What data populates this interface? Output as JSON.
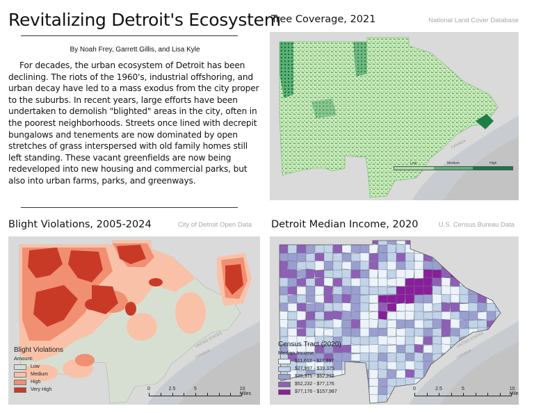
{
  "article": {
    "title": "Revitalizing Detroit's Ecosystem",
    "byline": "By Noah Frey, Garrett Gillis, and Lisa Kyle",
    "body": "For decades, the urban ecosystem of Detroit has been declining. The riots of the 1960's, industrial offshoring, and urban decay have led to a mass exodus from the city proper to the suburbs. In recent years, large efforts have been undertaken to demolish \"blighted\" areas in the city, often in the poorest neighborhoods. Streets once lined with decrepit bungalows and tenements are now dominated by open stretches of grass interspersed with old family homes still left standing. These vacant greenfields are now being redeveloped into new housing and commercial parks, but also into urban farms, parks, and greenways."
  },
  "tree_map": {
    "title": "Tree Coverage, 2021",
    "source": "National Land Cover Database",
    "water_label": "CANADA",
    "legend": [
      {
        "label": "Low",
        "color": "#a7d7a3"
      },
      {
        "label": "Medium",
        "color": "#59b27a"
      },
      {
        "label": "High",
        "color": "#0f7a4a"
      }
    ]
  },
  "blight_map": {
    "title": "Blight Violations, 2005-2024",
    "source": "City of Detroit Open Data",
    "legend_title": "Blight Violations",
    "legend_sub": "Amount:",
    "legend": [
      {
        "label": "Low",
        "color": "#d7dfd3"
      },
      {
        "label": "Medium",
        "color": "#f9c2a8"
      },
      {
        "label": "High",
        "color": "#f18f72"
      },
      {
        "label": "Very High",
        "color": "#c93a26"
      }
    ],
    "scale": {
      "labels": [
        "0",
        "2.5",
        "5",
        "10 Miles"
      ]
    },
    "water_labels": [
      "UNITED STATES",
      "CANADA"
    ]
  },
  "income_map": {
    "title": "Detroit Median Income, 2020",
    "source": "U.S. Census Bureau Data",
    "legend_title": "Census Tract (2020)",
    "legend_sub": "Median Income",
    "legend": [
      {
        "label": "$11,612 - $27,997",
        "color": "#edf3fa"
      },
      {
        "label": "$27,997 - $39,375",
        "color": "#c3d4e8"
      },
      {
        "label": "$39,375 - $52,232",
        "color": "#9a9fcf"
      },
      {
        "label": "$52,232 - $77,176",
        "color": "#8e5fb5"
      },
      {
        "label": "$77,176 - $157,987",
        "color": "#8a1e9a"
      }
    ],
    "scale": {
      "labels": [
        "0",
        "2.5",
        "5",
        "10 Miles"
      ]
    },
    "water_labels": [
      "UNITED STATES",
      "CANADA"
    ]
  }
}
